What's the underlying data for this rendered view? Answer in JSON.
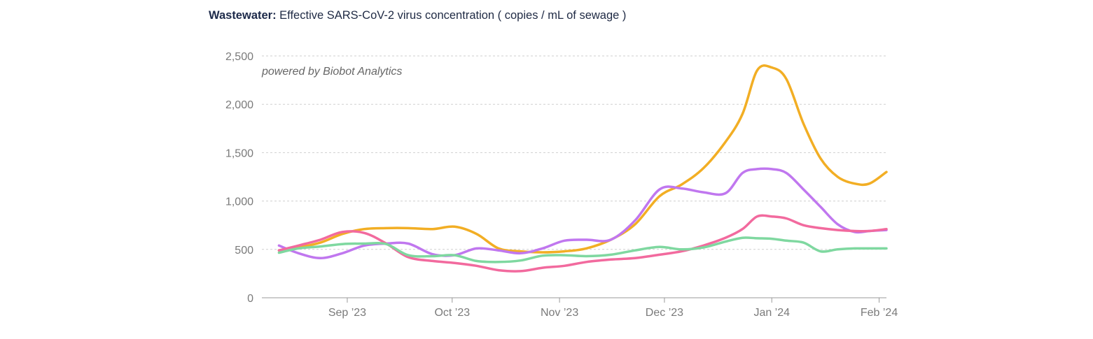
{
  "chart_data": {
    "type": "line",
    "title_bold": "Wastewater:",
    "title_rest": " Effective SARS-CoV-2 virus concentration ( copies / mL of sewage )",
    "annotation": "powered by Biobot Analytics",
    "xlabel": "",
    "ylabel": "",
    "ylim": [
      0,
      2500
    ],
    "xlim": [
      0,
      25.6
    ],
    "grid": true,
    "y_ticks": [
      {
        "value": 0,
        "label": "0"
      },
      {
        "value": 500,
        "label": "500"
      },
      {
        "value": 1000,
        "label": "1,000"
      },
      {
        "value": 1500,
        "label": "1,500"
      },
      {
        "value": 2000,
        "label": "2,000"
      },
      {
        "value": 2500,
        "label": "2,500"
      }
    ],
    "x_ticks": [
      {
        "value": 3.5,
        "label": "Sep ’23"
      },
      {
        "value": 7.8,
        "label": "Oct ’23"
      },
      {
        "value": 12.2,
        "label": "Nov ’23"
      },
      {
        "value": 16.5,
        "label": "Dec ’23"
      },
      {
        "value": 20.9,
        "label": "Jan ’24"
      },
      {
        "value": 25.3,
        "label": "Feb ’24"
      }
    ],
    "series": [
      {
        "name": "Orange region",
        "color": "#f2ae24",
        "x": [
          0.7,
          1.5,
          2.4,
          3.3,
          4.2,
          5.1,
          6.0,
          7.0,
          7.9,
          8.8,
          9.7,
          10.6,
          11.5,
          12.4,
          13.3,
          14.3,
          15.3,
          16.3,
          17.2,
          18.1,
          19.0,
          19.7,
          20.3,
          20.9,
          21.5,
          22.2,
          22.9,
          23.6,
          24.3,
          24.9,
          25.6
        ],
        "values": [
          490,
          520,
          570,
          660,
          710,
          720,
          720,
          710,
          735,
          660,
          510,
          480,
          470,
          480,
          510,
          600,
          760,
          1050,
          1170,
          1340,
          1610,
          1900,
          2350,
          2380,
          2260,
          1800,
          1440,
          1250,
          1180,
          1180,
          1300
        ]
      },
      {
        "name": "Purple region",
        "color": "#c077ef",
        "x": [
          0.7,
          1.5,
          2.4,
          3.3,
          4.2,
          5.1,
          6.0,
          7.0,
          7.9,
          8.8,
          9.7,
          10.6,
          11.5,
          12.4,
          13.3,
          14.3,
          15.3,
          16.3,
          17.2,
          18.1,
          19.0,
          19.7,
          20.3,
          20.9,
          21.5,
          22.2,
          22.9,
          23.6,
          24.3,
          24.9,
          25.6
        ],
        "values": [
          540,
          460,
          410,
          460,
          540,
          560,
          560,
          450,
          440,
          510,
          490,
          460,
          510,
          590,
          600,
          600,
          800,
          1120,
          1130,
          1090,
          1080,
          1290,
          1330,
          1330,
          1290,
          1120,
          940,
          760,
          680,
          690,
          700
        ]
      },
      {
        "name": "Pink region",
        "color": "#f26a9e",
        "x": [
          0.7,
          1.5,
          2.4,
          3.3,
          4.2,
          5.1,
          6.0,
          7.0,
          7.9,
          8.8,
          9.7,
          10.6,
          11.5,
          12.4,
          13.3,
          14.3,
          15.3,
          16.3,
          17.2,
          18.1,
          19.0,
          19.7,
          20.3,
          20.9,
          21.5,
          22.2,
          22.9,
          23.6,
          24.3,
          24.9,
          25.6
        ],
        "values": [
          490,
          540,
          600,
          680,
          670,
          560,
          420,
          380,
          360,
          330,
          285,
          275,
          310,
          330,
          370,
          395,
          410,
          445,
          480,
          540,
          620,
          710,
          840,
          840,
          820,
          750,
          720,
          700,
          690,
          690,
          710
        ]
      },
      {
        "name": "Green region",
        "color": "#7fd8a0",
        "x": [
          0.7,
          1.5,
          2.4,
          3.3,
          4.2,
          5.1,
          6.0,
          7.0,
          7.9,
          8.8,
          9.7,
          10.6,
          11.5,
          12.4,
          13.3,
          14.3,
          15.3,
          16.3,
          17.2,
          18.1,
          19.0,
          19.7,
          20.3,
          20.9,
          21.5,
          22.2,
          22.9,
          23.6,
          24.3,
          24.9,
          25.6
        ],
        "values": [
          465,
          510,
          530,
          555,
          560,
          555,
          440,
          430,
          440,
          380,
          370,
          385,
          435,
          440,
          430,
          445,
          490,
          525,
          500,
          520,
          580,
          620,
          615,
          610,
          590,
          570,
          480,
          500,
          510,
          510,
          510
        ]
      }
    ]
  }
}
